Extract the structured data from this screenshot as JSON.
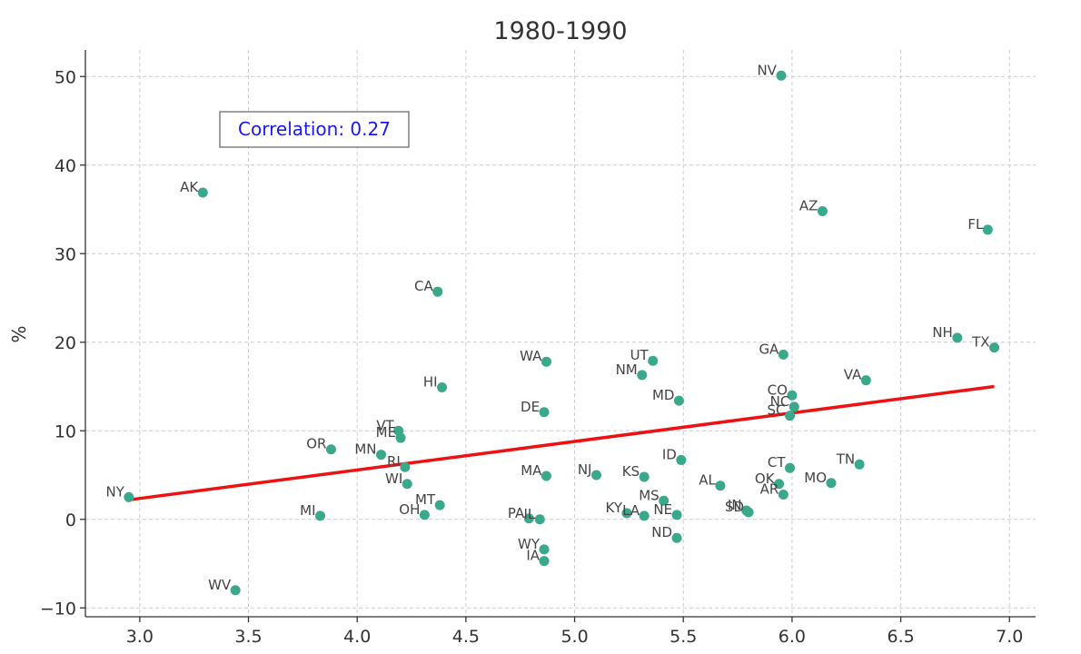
{
  "chart_data": {
    "type": "scatter",
    "title": "1980-1990",
    "xlabel": "",
    "ylabel": "%",
    "xlim": [
      2.75,
      7.12
    ],
    "ylim": [
      -11,
      53
    ],
    "xticks": [
      3.0,
      3.5,
      4.0,
      4.5,
      5.0,
      5.5,
      6.0,
      6.5,
      7.0
    ],
    "xtick_labels": [
      "3.0",
      "3.5",
      "4.0",
      "4.5",
      "5.0",
      "5.5",
      "6.0",
      "6.5",
      "7.0"
    ],
    "yticks": [
      -10,
      0,
      10,
      20,
      30,
      40,
      50
    ],
    "ytick_labels": [
      "−10",
      "0",
      "10",
      "20",
      "30",
      "40",
      "50"
    ],
    "grid": true,
    "point_color": "#3aa88a",
    "fit_color": "#ee1111",
    "annotation": "Correlation: 0.27",
    "fit_line": {
      "x": [
        2.95,
        6.93
      ],
      "y": [
        2.2,
        15.0
      ]
    },
    "points": [
      {
        "label": "NV",
        "x": 5.95,
        "y": 50.1
      },
      {
        "label": "AK",
        "x": 3.29,
        "y": 36.9
      },
      {
        "label": "AZ",
        "x": 6.14,
        "y": 34.8
      },
      {
        "label": "FL",
        "x": 6.9,
        "y": 32.7
      },
      {
        "label": "CA",
        "x": 4.37,
        "y": 25.7
      },
      {
        "label": "NH",
        "x": 6.76,
        "y": 20.5
      },
      {
        "label": "TX",
        "x": 6.93,
        "y": 19.4
      },
      {
        "label": "GA",
        "x": 5.96,
        "y": 18.6
      },
      {
        "label": "UT",
        "x": 5.36,
        "y": 17.9
      },
      {
        "label": "WA",
        "x": 4.87,
        "y": 17.8
      },
      {
        "label": "NM",
        "x": 5.31,
        "y": 16.3
      },
      {
        "label": "VA",
        "x": 6.34,
        "y": 15.7
      },
      {
        "label": "HI",
        "x": 4.39,
        "y": 14.9
      },
      {
        "label": "CO",
        "x": 6.0,
        "y": 14.0
      },
      {
        "label": "MD",
        "x": 5.48,
        "y": 13.4
      },
      {
        "label": "NC",
        "x": 6.01,
        "y": 12.7
      },
      {
        "label": "DE",
        "x": 4.86,
        "y": 12.1
      },
      {
        "label": "SC",
        "x": 5.99,
        "y": 11.7
      },
      {
        "label": "VT",
        "x": 4.19,
        "y": 10.0
      },
      {
        "label": "ME",
        "x": 4.2,
        "y": 9.2
      },
      {
        "label": "OR",
        "x": 3.88,
        "y": 7.9
      },
      {
        "label": "MN",
        "x": 4.11,
        "y": 7.3
      },
      {
        "label": "ID",
        "x": 5.49,
        "y": 6.7
      },
      {
        "label": "TN",
        "x": 6.31,
        "y": 6.2
      },
      {
        "label": "RI",
        "x": 4.22,
        "y": 5.9
      },
      {
        "label": "CT",
        "x": 5.99,
        "y": 5.8
      },
      {
        "label": "NJ",
        "x": 5.1,
        "y": 5.0
      },
      {
        "label": "MA",
        "x": 4.87,
        "y": 4.9
      },
      {
        "label": "KS",
        "x": 5.32,
        "y": 4.8
      },
      {
        "label": "MO",
        "x": 6.18,
        "y": 4.1
      },
      {
        "label": "WI",
        "x": 4.23,
        "y": 4.0
      },
      {
        "label": "OK",
        "x": 5.94,
        "y": 4.0
      },
      {
        "label": "AL",
        "x": 5.67,
        "y": 3.8
      },
      {
        "label": "AR",
        "x": 5.96,
        "y": 2.8
      },
      {
        "label": "NY",
        "x": 2.95,
        "y": 2.5
      },
      {
        "label": "MS",
        "x": 5.41,
        "y": 2.1
      },
      {
        "label": "MT",
        "x": 4.38,
        "y": 1.6
      },
      {
        "label": "IN",
        "x": 5.79,
        "y": 1.0
      },
      {
        "label": "SD",
        "x": 5.8,
        "y": 0.8
      },
      {
        "label": "OH",
        "x": 4.31,
        "y": 0.5
      },
      {
        "label": "NE",
        "x": 5.47,
        "y": 0.5
      },
      {
        "label": "MI",
        "x": 3.83,
        "y": 0.4
      },
      {
        "label": "KY",
        "x": 5.24,
        "y": 0.7
      },
      {
        "label": "LA",
        "x": 5.32,
        "y": 0.4
      },
      {
        "label": "PA",
        "x": 4.79,
        "y": 0.1
      },
      {
        "label": "IL",
        "x": 4.84,
        "y": 0.0
      },
      {
        "label": "ND",
        "x": 5.47,
        "y": -2.1
      },
      {
        "label": "WY",
        "x": 4.86,
        "y": -3.4
      },
      {
        "label": "IA",
        "x": 4.86,
        "y": -4.7
      },
      {
        "label": "WV",
        "x": 3.44,
        "y": -8.0
      }
    ]
  }
}
